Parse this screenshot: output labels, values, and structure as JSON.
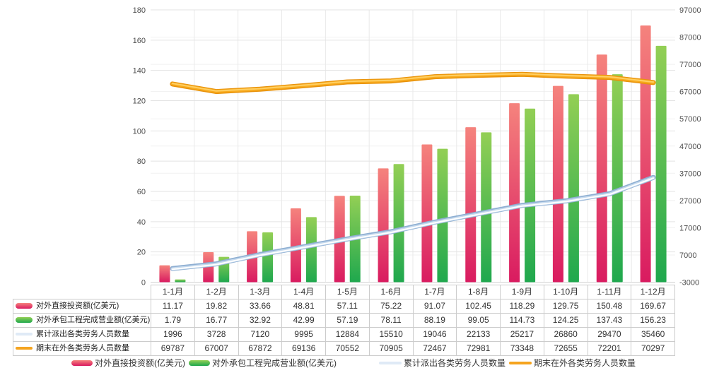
{
  "chart_data": {
    "type": "combo-bar-line-dual-axis",
    "title": "",
    "xlabel": "",
    "ylabel_left": "",
    "ylabel_right": "",
    "grid": true,
    "legend_position": "bottom",
    "categories": [
      "1-1月",
      "1-2月",
      "1-3月",
      "1-4月",
      "1-5月",
      "1-6月",
      "1-7月",
      "1-8月",
      "1-9月",
      "1-10月",
      "1-11月",
      "1-12月"
    ],
    "series": [
      {
        "name": "对外直接投资额(亿美元)",
        "type": "bar",
        "axis": "left",
        "colors": [
          "#f5837d",
          "#d91b60"
        ],
        "swatch": "linear",
        "values": [
          11.17,
          19.82,
          33.66,
          48.81,
          57.11,
          75.22,
          91.07,
          102.45,
          118.29,
          129.75,
          150.48,
          169.67
        ]
      },
      {
        "name": "对外承包工程完成营业额(亿美元)",
        "type": "bar",
        "axis": "left",
        "colors": [
          "#93cf55",
          "#1fa84e"
        ],
        "swatch": "linear",
        "values": [
          1.79,
          16.77,
          32.92,
          42.99,
          57.19,
          78.11,
          88.19,
          99.05,
          114.73,
          124.25,
          137.43,
          156.23
        ]
      },
      {
        "name": "累计派出各类劳务人员数量",
        "type": "line",
        "axis": "right",
        "colors": [
          "#8fafd2",
          "#c6daee",
          "#ffffff"
        ],
        "swatch_color": "#dfeaf6",
        "values": [
          1996,
          3728,
          7120,
          9995,
          12884,
          15510,
          19046,
          22133,
          25217,
          26860,
          29470,
          35460
        ]
      },
      {
        "name": "期末在外各类劳务人员数量",
        "type": "line",
        "axis": "right",
        "colors": [
          "#e8920b",
          "#f8ab1e",
          "#ffcf63"
        ],
        "swatch_color": "#f5a41f",
        "values": [
          69787,
          67007,
          67872,
          69136,
          70552,
          70905,
          72467,
          72981,
          73348,
          72655,
          72201,
          70297
        ]
      }
    ],
    "left_axis": {
      "min": 0,
      "max": 180,
      "step": 20,
      "ticks": [
        "180",
        "160",
        "140",
        "120",
        "100",
        "80",
        "60",
        "40",
        "20",
        "0"
      ]
    },
    "right_axis": {
      "min": -3000,
      "max": 97000,
      "step": 10000,
      "ticks": [
        "97000",
        "87000",
        "77000",
        "67000",
        "57000",
        "47000",
        "37000",
        "27000",
        "17000",
        "7000",
        "-3000"
      ]
    }
  },
  "colors": {
    "gridline_major": "#e3e3e3",
    "gridline_minor": "#f1f1f1",
    "gridline_vertical": "#e9e9e9",
    "baseline": "#d2d2d2",
    "table_border": "#cccccc",
    "axis_text": "#4d4d4d"
  }
}
